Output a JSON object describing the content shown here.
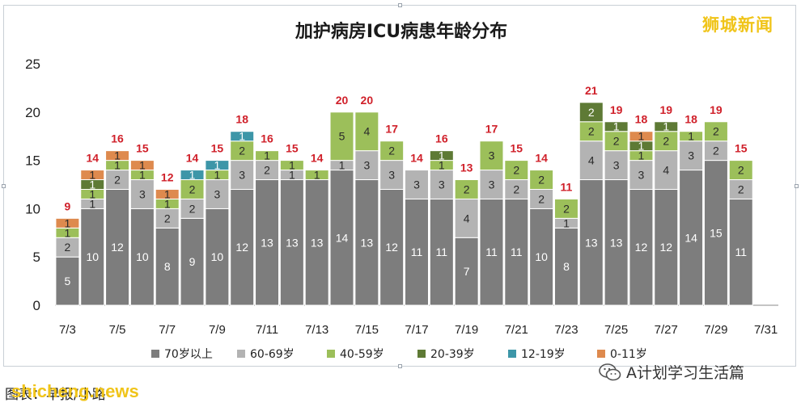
{
  "brand": "狮城新闻",
  "credit": "图表：早报/小路",
  "credit_en": "shicheng.news",
  "wechat": "A计划学习生活篇",
  "colors": {
    "70岁以上": "#7d7d7d",
    "60-69岁": "#b3b3b3",
    "40-59岁": "#9cbf5a",
    "20-39岁": "#5e7a35",
    "12-19岁": "#3d96a8",
    "0-11岁": "#de8a4e",
    "total_label": "#d0202a"
  },
  "chart_data": {
    "type": "bar",
    "stacked": true,
    "title": "加护病房ICU病患年龄分布",
    "xlabel": "",
    "ylabel": "",
    "ylim": [
      0,
      25
    ],
    "yticks": [
      0,
      5,
      10,
      15,
      20,
      25
    ],
    "grid": false,
    "legend_position": "bottom",
    "categories": [
      "7/3",
      "7/4",
      "7/5",
      "7/6",
      "7/7",
      "7/8",
      "7/9",
      "7/10",
      "7/11",
      "7/12",
      "7/13",
      "7/14",
      "7/15",
      "7/16",
      "7/17",
      "7/18",
      "7/19",
      "7/20",
      "7/21",
      "7/22",
      "7/23",
      "7/24",
      "7/25",
      "7/26",
      "7/27",
      "7/28",
      "7/29",
      "7/30",
      "7/31"
    ],
    "xtick_labels": [
      "7/3",
      "7/5",
      "7/7",
      "7/9",
      "7/11",
      "7/13",
      "7/15",
      "7/17",
      "7/19",
      "7/21",
      "7/23",
      "7/25",
      "7/27",
      "7/29",
      "7/31"
    ],
    "series": [
      {
        "name": "70岁以上",
        "values": [
          5,
          10,
          12,
          10,
          8,
          9,
          10,
          12,
          13,
          13,
          13,
          14,
          13,
          12,
          11,
          11,
          7,
          11,
          11,
          10,
          8,
          13,
          13,
          12,
          12,
          14,
          15,
          11,
          null
        ]
      },
      {
        "name": "60-69岁",
        "values": [
          2,
          1,
          2,
          3,
          2,
          2,
          3,
          3,
          2,
          1,
          0,
          1,
          3,
          3,
          3,
          3,
          4,
          3,
          2,
          2,
          1,
          4,
          3,
          3,
          4,
          3,
          2,
          2,
          null
        ]
      },
      {
        "name": "40-59岁",
        "values": [
          1,
          1,
          1,
          1,
          1,
          2,
          1,
          2,
          1,
          1,
          1,
          5,
          4,
          2,
          0,
          1,
          2,
          3,
          2,
          2,
          2,
          2,
          2,
          1,
          2,
          1,
          2,
          2,
          null
        ]
      },
      {
        "name": "20-39岁",
        "values": [
          0,
          1,
          0,
          0,
          0,
          0,
          0,
          0,
          0,
          0,
          0,
          0,
          0,
          0,
          0,
          1,
          0,
          0,
          0,
          0,
          0,
          2,
          1,
          1,
          1,
          0,
          0,
          0,
          null
        ]
      },
      {
        "name": "12-19岁",
        "values": [
          0,
          0,
          0,
          0,
          0,
          1,
          1,
          1,
          0,
          0,
          0,
          0,
          0,
          0,
          0,
          0,
          0,
          0,
          0,
          0,
          0,
          0,
          0,
          0,
          0,
          0,
          0,
          0,
          null
        ]
      },
      {
        "name": "0-11岁",
        "values": [
          1,
          1,
          1,
          1,
          1,
          0,
          0,
          0,
          0,
          0,
          0,
          0,
          0,
          0,
          0,
          0,
          0,
          0,
          0,
          0,
          0,
          0,
          0,
          1,
          0,
          0,
          0,
          0,
          null
        ]
      }
    ],
    "totals": [
      9,
      14,
      16,
      15,
      12,
      14,
      15,
      18,
      16,
      15,
      14,
      20,
      20,
      17,
      14,
      16,
      13,
      17,
      15,
      14,
      11,
      21,
      19,
      18,
      19,
      18,
      19,
      15,
      null
    ],
    "highlight_last": "15"
  }
}
